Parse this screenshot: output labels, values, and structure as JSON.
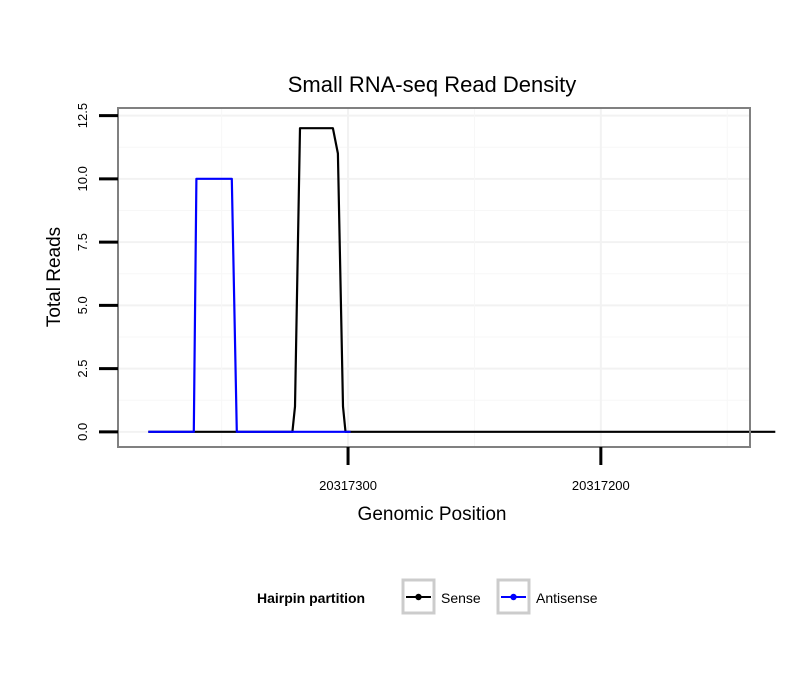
{
  "chart_data": {
    "type": "line",
    "title": "Small RNA-seq Read Density",
    "xlabel": "Genomic Position",
    "ylabel": "Total Reads",
    "x_reversed": true,
    "xlim": [
      20317391,
      20317141
    ],
    "ylim": [
      -0.6,
      12.8
    ],
    "x_ticks": [
      20317300,
      20317200
    ],
    "x_tick_labels": [
      "20317300",
      "20317200"
    ],
    "y_ticks": [
      0,
      2.5,
      5,
      7.5,
      10,
      12.5
    ],
    "y_tick_labels": [
      "0.0",
      "2.5",
      "5.0",
      "7.5",
      "10.0",
      "12.5"
    ],
    "grid": true,
    "series": [
      {
        "name": "Sense",
        "color": "#000000",
        "x": [
          20317379,
          20317333,
          20317322,
          20317321,
          20317319,
          20317306,
          20317304,
          20317302,
          20317301,
          20317299,
          20317131
        ],
        "y": [
          0,
          0,
          0,
          1,
          12,
          12,
          11,
          1,
          0,
          0,
          0
        ]
      },
      {
        "name": "Antisense",
        "color": "#0000ff",
        "x": [
          20317379,
          20317361,
          20317360,
          20317346,
          20317344,
          20317322,
          20317299
        ],
        "y": [
          0,
          0,
          10,
          10,
          0,
          0,
          0
        ]
      }
    ],
    "legend": {
      "title": "Hairpin partition",
      "entries": [
        "Sense",
        "Antisense"
      ],
      "position": "bottom"
    }
  }
}
